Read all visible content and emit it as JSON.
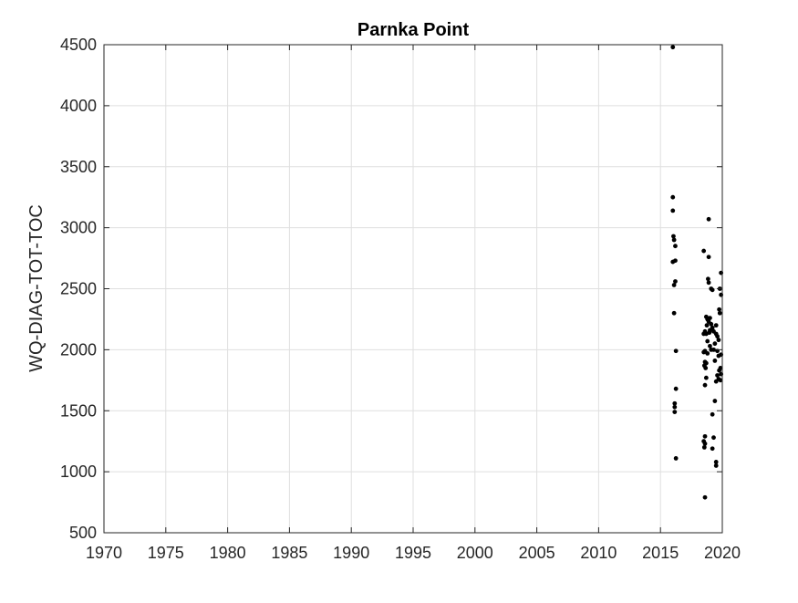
{
  "chart_data": {
    "type": "scatter",
    "title": "Parnka Point",
    "xlabel": "",
    "ylabel": "WQ-DIAG-TOT-TOC",
    "xlim": [
      1970,
      2020
    ],
    "ylim": [
      500,
      4500
    ],
    "xticks": [
      1970,
      1975,
      1980,
      1985,
      1990,
      1995,
      2000,
      2005,
      2010,
      2015,
      2020
    ],
    "yticks": [
      500,
      1000,
      1500,
      2000,
      2500,
      3000,
      3500,
      4000,
      4500
    ],
    "xtick_labels": [
      "1970",
      "1975",
      "1980",
      "1985",
      "1990",
      "1995",
      "2000",
      "2005",
      "2010",
      "2015",
      "2020"
    ],
    "ytick_labels": [
      "500",
      "1000",
      "1500",
      "2000",
      "2500",
      "3000",
      "3500",
      "4000",
      "4500"
    ],
    "grid": true,
    "marker_color": "#000000",
    "series": [
      {
        "points": [
          [
            2016.0,
            4480
          ],
          [
            2016.0,
            3250
          ],
          [
            2016.0,
            3140
          ],
          [
            2016.05,
            2930
          ],
          [
            2016.1,
            2900
          ],
          [
            2016.0,
            2720
          ],
          [
            2016.2,
            2850
          ],
          [
            2016.2,
            2730
          ],
          [
            2016.1,
            2530
          ],
          [
            2016.2,
            2560
          ],
          [
            2016.1,
            2300
          ],
          [
            2016.25,
            1990
          ],
          [
            2016.25,
            1680
          ],
          [
            2016.15,
            1560
          ],
          [
            2016.15,
            1530
          ],
          [
            2016.15,
            1490
          ],
          [
            2016.25,
            1110
          ],
          [
            2018.5,
            2810
          ],
          [
            2018.9,
            3070
          ],
          [
            2018.9,
            2760
          ],
          [
            2018.85,
            2580
          ],
          [
            2018.9,
            2550
          ],
          [
            2019.1,
            2500
          ],
          [
            2019.2,
            2490
          ],
          [
            2019.9,
            2630
          ],
          [
            2019.8,
            2500
          ],
          [
            2019.9,
            2450
          ],
          [
            2019.75,
            2330
          ],
          [
            2019.8,
            2300
          ],
          [
            2018.7,
            2270
          ],
          [
            2018.8,
            2250
          ],
          [
            2018.9,
            2230
          ],
          [
            2019.0,
            2260
          ],
          [
            2018.75,
            2200
          ],
          [
            2019.1,
            2210
          ],
          [
            2019.2,
            2180
          ],
          [
            2019.5,
            2200
          ],
          [
            2018.6,
            2150
          ],
          [
            2018.5,
            2130
          ],
          [
            2018.7,
            2130
          ],
          [
            2018.95,
            2140
          ],
          [
            2019.0,
            2160
          ],
          [
            2019.3,
            2150
          ],
          [
            2019.5,
            2130
          ],
          [
            2019.6,
            2110
          ],
          [
            2019.7,
            2080
          ],
          [
            2018.8,
            2070
          ],
          [
            2019.4,
            2050
          ],
          [
            2019.0,
            2030
          ],
          [
            2019.1,
            2000
          ],
          [
            2019.3,
            2000
          ],
          [
            2018.6,
            1990
          ],
          [
            2018.5,
            1980
          ],
          [
            2018.8,
            1970
          ],
          [
            2019.6,
            1990
          ],
          [
            2019.7,
            1950
          ],
          [
            2019.9,
            1960
          ],
          [
            2019.4,
            1910
          ],
          [
            2018.6,
            1900
          ],
          [
            2018.7,
            1890
          ],
          [
            2018.55,
            1870
          ],
          [
            2018.65,
            1850
          ],
          [
            2019.85,
            1850
          ],
          [
            2019.75,
            1830
          ],
          [
            2019.9,
            1800
          ],
          [
            2019.6,
            1790
          ],
          [
            2018.7,
            1770
          ],
          [
            2019.7,
            1760
          ],
          [
            2019.85,
            1750
          ],
          [
            2019.5,
            1740
          ],
          [
            2018.6,
            1710
          ],
          [
            2019.4,
            1580
          ],
          [
            2019.2,
            1470
          ],
          [
            2018.6,
            1290
          ],
          [
            2019.3,
            1280
          ],
          [
            2018.5,
            1250
          ],
          [
            2018.6,
            1230
          ],
          [
            2018.55,
            1200
          ],
          [
            2019.2,
            1190
          ],
          [
            2019.5,
            1080
          ],
          [
            2019.5,
            1050
          ],
          [
            2018.6,
            790
          ]
        ]
      }
    ]
  }
}
